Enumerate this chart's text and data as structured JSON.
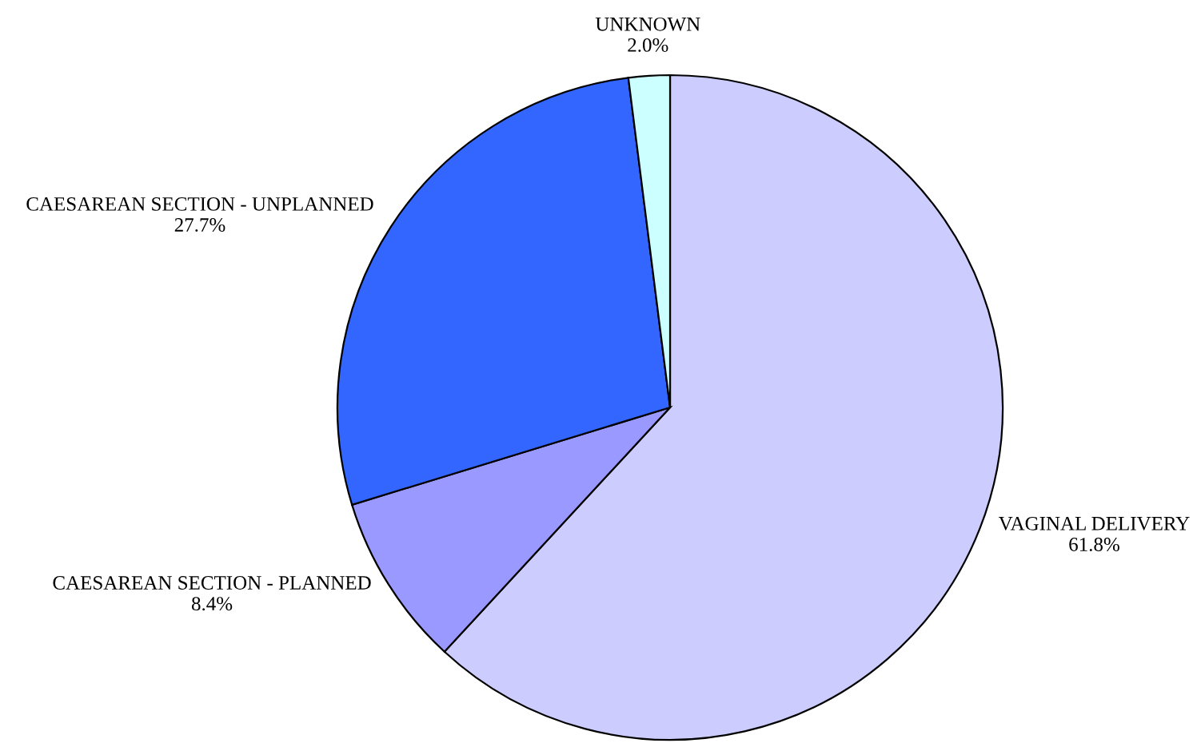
{
  "chart_data": {
    "type": "pie",
    "categories": [
      "VAGINAL DELIVERY",
      "CAESAREAN SECTION - PLANNED",
      "CAESAREAN SECTION - UNPLANNED",
      "UNKNOWN"
    ],
    "values": [
      61.8,
      8.4,
      27.7,
      2.0
    ],
    "value_labels": [
      "61.8%",
      "8.4%",
      "27.7%",
      "2.0%"
    ],
    "colors": [
      "#ccccff",
      "#9999ff",
      "#3366ff",
      "#ccffff"
    ]
  }
}
